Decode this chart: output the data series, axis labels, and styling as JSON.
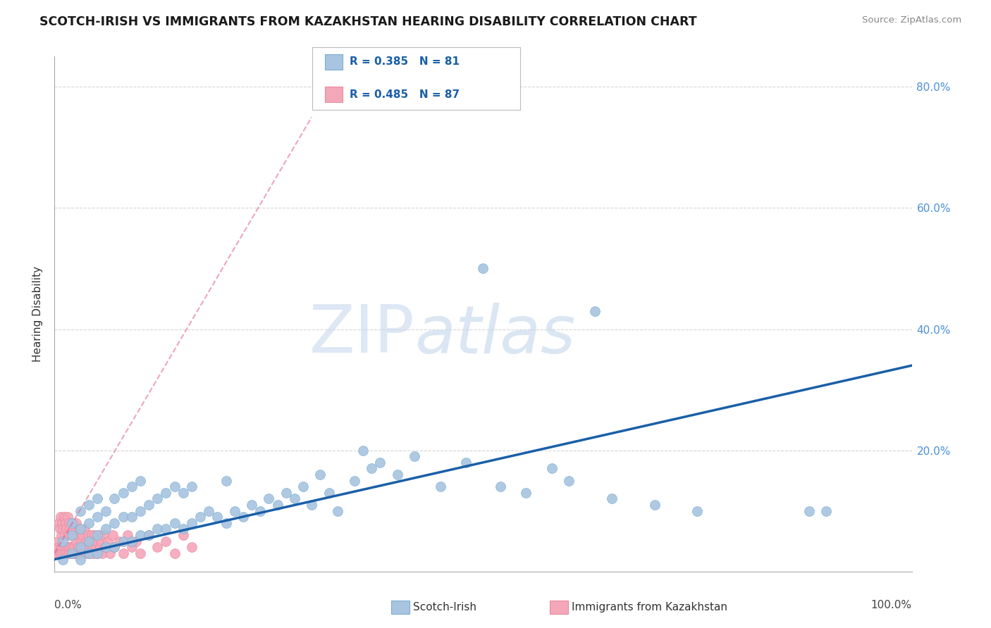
{
  "title": "SCOTCH-IRISH VS IMMIGRANTS FROM KAZAKHSTAN HEARING DISABILITY CORRELATION CHART",
  "source": "Source: ZipAtlas.com",
  "ylabel": "Hearing Disability",
  "xlim": [
    0,
    1.0
  ],
  "ylim": [
    0,
    0.85
  ],
  "legend_blue_R": "R = 0.385",
  "legend_blue_N": "N = 81",
  "legend_pink_R": "R = 0.485",
  "legend_pink_N": "N = 87",
  "legend_label_blue": "Scotch-Irish",
  "legend_label_pink": "Immigrants from Kazakhstan",
  "blue_color": "#a8c4e0",
  "blue_edge_color": "#7aafd0",
  "blue_line_color": "#1a5fa8",
  "pink_color": "#f4a7b9",
  "pink_edge_color": "#e88aa0",
  "pink_line_color": "#e05c8a",
  "watermark_zip": "ZIP",
  "watermark_atlas": "atlas",
  "background_color": "#ffffff",
  "grid_color": "#cccccc",
  "scotch_irish_x": [
    0.01,
    0.01,
    0.02,
    0.02,
    0.02,
    0.03,
    0.03,
    0.03,
    0.03,
    0.04,
    0.04,
    0.04,
    0.04,
    0.05,
    0.05,
    0.05,
    0.05,
    0.06,
    0.06,
    0.06,
    0.07,
    0.07,
    0.07,
    0.08,
    0.08,
    0.08,
    0.09,
    0.09,
    0.09,
    0.1,
    0.1,
    0.1,
    0.11,
    0.11,
    0.12,
    0.12,
    0.13,
    0.13,
    0.14,
    0.14,
    0.15,
    0.15,
    0.16,
    0.16,
    0.17,
    0.18,
    0.19,
    0.2,
    0.2,
    0.21,
    0.22,
    0.23,
    0.24,
    0.25,
    0.26,
    0.27,
    0.28,
    0.29,
    0.3,
    0.31,
    0.32,
    0.33,
    0.35,
    0.36,
    0.37,
    0.38,
    0.4,
    0.42,
    0.45,
    0.48,
    0.5,
    0.52,
    0.55,
    0.58,
    0.6,
    0.63,
    0.65,
    0.7,
    0.75,
    0.88,
    0.9
  ],
  "scotch_irish_y": [
    0.02,
    0.05,
    0.03,
    0.06,
    0.08,
    0.02,
    0.04,
    0.07,
    0.1,
    0.03,
    0.05,
    0.08,
    0.11,
    0.03,
    0.06,
    0.09,
    0.12,
    0.04,
    0.07,
    0.1,
    0.04,
    0.08,
    0.12,
    0.05,
    0.09,
    0.13,
    0.05,
    0.09,
    0.14,
    0.06,
    0.1,
    0.15,
    0.06,
    0.11,
    0.07,
    0.12,
    0.07,
    0.13,
    0.08,
    0.14,
    0.07,
    0.13,
    0.08,
    0.14,
    0.09,
    0.1,
    0.09,
    0.08,
    0.15,
    0.1,
    0.09,
    0.11,
    0.1,
    0.12,
    0.11,
    0.13,
    0.12,
    0.14,
    0.11,
    0.16,
    0.13,
    0.1,
    0.15,
    0.2,
    0.17,
    0.18,
    0.16,
    0.19,
    0.14,
    0.18,
    0.5,
    0.14,
    0.13,
    0.17,
    0.15,
    0.43,
    0.12,
    0.11,
    0.1,
    0.1,
    0.1
  ],
  "kazakhstan_x": [
    0.003,
    0.004,
    0.005,
    0.005,
    0.006,
    0.006,
    0.007,
    0.007,
    0.008,
    0.008,
    0.009,
    0.009,
    0.01,
    0.01,
    0.011,
    0.011,
    0.012,
    0.012,
    0.013,
    0.013,
    0.014,
    0.014,
    0.015,
    0.015,
    0.016,
    0.016,
    0.017,
    0.017,
    0.018,
    0.018,
    0.019,
    0.02,
    0.02,
    0.021,
    0.022,
    0.022,
    0.023,
    0.024,
    0.025,
    0.025,
    0.026,
    0.027,
    0.028,
    0.029,
    0.03,
    0.031,
    0.032,
    0.033,
    0.034,
    0.035,
    0.036,
    0.037,
    0.038,
    0.039,
    0.04,
    0.041,
    0.042,
    0.043,
    0.044,
    0.045,
    0.046,
    0.047,
    0.048,
    0.049,
    0.05,
    0.052,
    0.053,
    0.055,
    0.056,
    0.058,
    0.06,
    0.062,
    0.065,
    0.068,
    0.07,
    0.075,
    0.08,
    0.085,
    0.09,
    0.095,
    0.1,
    0.11,
    0.12,
    0.13,
    0.14,
    0.15,
    0.16
  ],
  "kazakhstan_y": [
    0.03,
    0.05,
    0.04,
    0.08,
    0.03,
    0.07,
    0.04,
    0.09,
    0.03,
    0.06,
    0.04,
    0.08,
    0.03,
    0.07,
    0.04,
    0.09,
    0.03,
    0.06,
    0.04,
    0.08,
    0.03,
    0.07,
    0.04,
    0.09,
    0.03,
    0.06,
    0.04,
    0.08,
    0.03,
    0.07,
    0.04,
    0.03,
    0.06,
    0.04,
    0.03,
    0.07,
    0.04,
    0.03,
    0.05,
    0.08,
    0.03,
    0.06,
    0.04,
    0.07,
    0.03,
    0.05,
    0.04,
    0.06,
    0.03,
    0.07,
    0.04,
    0.05,
    0.03,
    0.06,
    0.04,
    0.05,
    0.03,
    0.06,
    0.04,
    0.05,
    0.03,
    0.06,
    0.04,
    0.05,
    0.03,
    0.06,
    0.04,
    0.05,
    0.03,
    0.06,
    0.04,
    0.05,
    0.03,
    0.06,
    0.04,
    0.05,
    0.03,
    0.06,
    0.04,
    0.05,
    0.03,
    0.06,
    0.04,
    0.05,
    0.03,
    0.06,
    0.04
  ],
  "blue_line_x0": 0.0,
  "blue_line_y0": 0.02,
  "blue_line_x1": 1.0,
  "blue_line_y1": 0.34,
  "pink_line_x0": 0.0,
  "pink_line_y0": 0.03,
  "pink_line_x1": 0.3,
  "pink_line_y1": 0.75
}
